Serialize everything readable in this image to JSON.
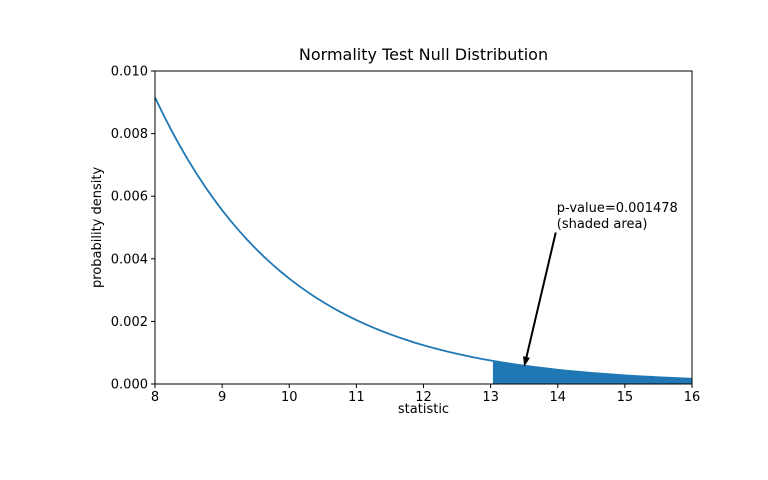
{
  "chart_data": {
    "type": "area",
    "title": "Normality Test Null Distribution",
    "xlabel": "statistic",
    "ylabel": "probability density",
    "xlim": [
      8,
      16
    ],
    "ylim": [
      0,
      0.01
    ],
    "xticks": [
      "8",
      "9",
      "10",
      "11",
      "12",
      "13",
      "14",
      "15",
      "16"
    ],
    "yticks": [
      "0.000",
      "0.002",
      "0.004",
      "0.006",
      "0.008",
      "0.010"
    ],
    "grid": false,
    "legend": null,
    "line_color": "#1f77b4",
    "fill_color": "#1f77b4",
    "axis_color": "#000000",
    "background_color": "#ffffff",
    "p_value": 0.001478,
    "statistic": 13.034,
    "shade_from": 13.034,
    "shade_to": 16,
    "x": [
      8.0,
      8.125,
      8.25,
      8.375,
      8.5,
      8.625,
      8.75,
      8.875,
      9.0,
      9.125,
      9.25,
      9.375,
      9.5,
      9.625,
      9.75,
      9.875,
      10.0,
      10.125,
      10.25,
      10.375,
      10.5,
      10.625,
      10.75,
      10.875,
      11.0,
      11.125,
      11.25,
      11.375,
      11.5,
      11.625,
      11.75,
      11.875,
      12.0,
      12.125,
      12.25,
      12.375,
      12.5,
      12.625,
      12.75,
      12.875,
      13.0,
      13.125,
      13.25,
      13.375,
      13.5,
      13.625,
      13.75,
      13.875,
      14.0,
      14.125,
      14.25,
      14.375,
      14.5,
      14.625,
      14.75,
      14.875,
      15.0,
      15.125,
      15.25,
      15.375,
      15.5,
      15.625,
      15.75,
      15.875,
      16.0
    ],
    "y": [
      0.0091578,
      0.008603,
      0.0080818,
      0.0075921,
      0.0071321,
      0.0067,
      0.0062941,
      0.0059127,
      0.0055545,
      0.005218,
      0.0049018,
      0.0046048,
      0.0043258,
      0.0040637,
      0.0038175,
      0.0035862,
      0.003369,
      0.0031648,
      0.0029731,
      0.0027929,
      0.0026237,
      0.0024648,
      0.0023154,
      0.0021751,
      0.0020434,
      0.0019196,
      0.0018033,
      0.001694,
      0.0015914,
      0.001495,
      0.0014044,
      0.0013193,
      0.0012394,
      0.0011643,
      0.0010937,
      0.0010275,
      0.0009652,
      0.0009068,
      0.0008518,
      0.0008002,
      0.0007517,
      0.0007062,
      0.0006634,
      0.0006232,
      0.0005854,
      0.00055,
      0.0005166,
      0.0004853,
      0.0004559,
      0.0004283,
      0.0004024,
      0.000378,
      0.0003551,
      0.0003336,
      0.0003134,
      0.0002944,
      0.0002766,
      0.0002598,
      0.0002441,
      0.0002293,
      0.0002154,
      0.0002023,
      0.0001901,
      0.0001785,
      0.0001677
    ],
    "annotation": {
      "lines": [
        "p-value=0.001478",
        "(shaded area)"
      ],
      "xy": [
        13.5,
        0.00055
      ],
      "xytext": [
        14.0,
        0.005
      ]
    }
  }
}
